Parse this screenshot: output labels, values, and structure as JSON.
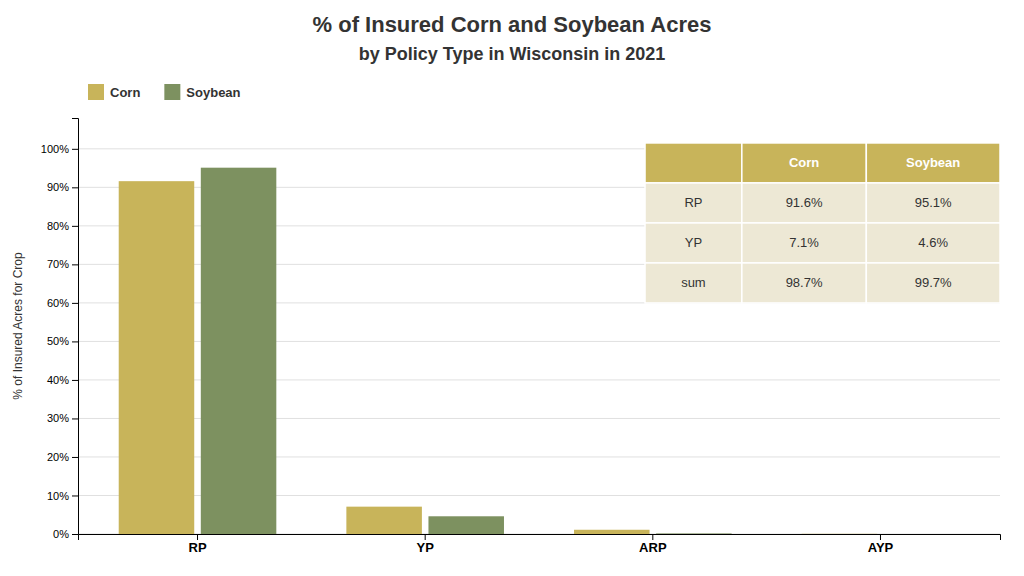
{
  "chart_data": {
    "type": "bar",
    "title": "% of Insured Corn and Soybean Acres",
    "subtitle": "by Policy Type in Wisconsin in 2021",
    "y_label": "% of Insured Acres for Crop",
    "categories": [
      "RP",
      "YP",
      "ARP",
      "AYP"
    ],
    "series": [
      {
        "name": "Corn",
        "color": "#c8b45a",
        "values": [
          91.6,
          7.1,
          1.1,
          0.05
        ]
      },
      {
        "name": "Soybean",
        "color": "#7d9160",
        "values": [
          95.1,
          4.6,
          0.15,
          0.0
        ]
      }
    ],
    "ylim": [
      0,
      108
    ],
    "yticks": [
      {
        "value": 0,
        "label": "0%"
      },
      {
        "value": 10,
        "label": "10%"
      },
      {
        "value": 20,
        "label": "20%"
      },
      {
        "value": 30,
        "label": "30%"
      },
      {
        "value": 40,
        "label": "40%"
      },
      {
        "value": 50,
        "label": "50%"
      },
      {
        "value": 60,
        "label": "60%"
      },
      {
        "value": 70,
        "label": "70%"
      },
      {
        "value": 80,
        "label": "80%"
      },
      {
        "value": 90,
        "label": "90%"
      },
      {
        "value": 100,
        "label": "100%"
      }
    ],
    "grid": true,
    "legend": "top",
    "table": {
      "columns": [
        "Corn",
        "Soybean"
      ],
      "rows": [
        {
          "label": "RP",
          "values": [
            "91.6%",
            "95.1%"
          ]
        },
        {
          "label": "YP",
          "values": [
            "7.1%",
            "4.6%"
          ]
        },
        {
          "label": "sum",
          "values": [
            "98.7%",
            "99.7%"
          ]
        }
      ]
    }
  }
}
